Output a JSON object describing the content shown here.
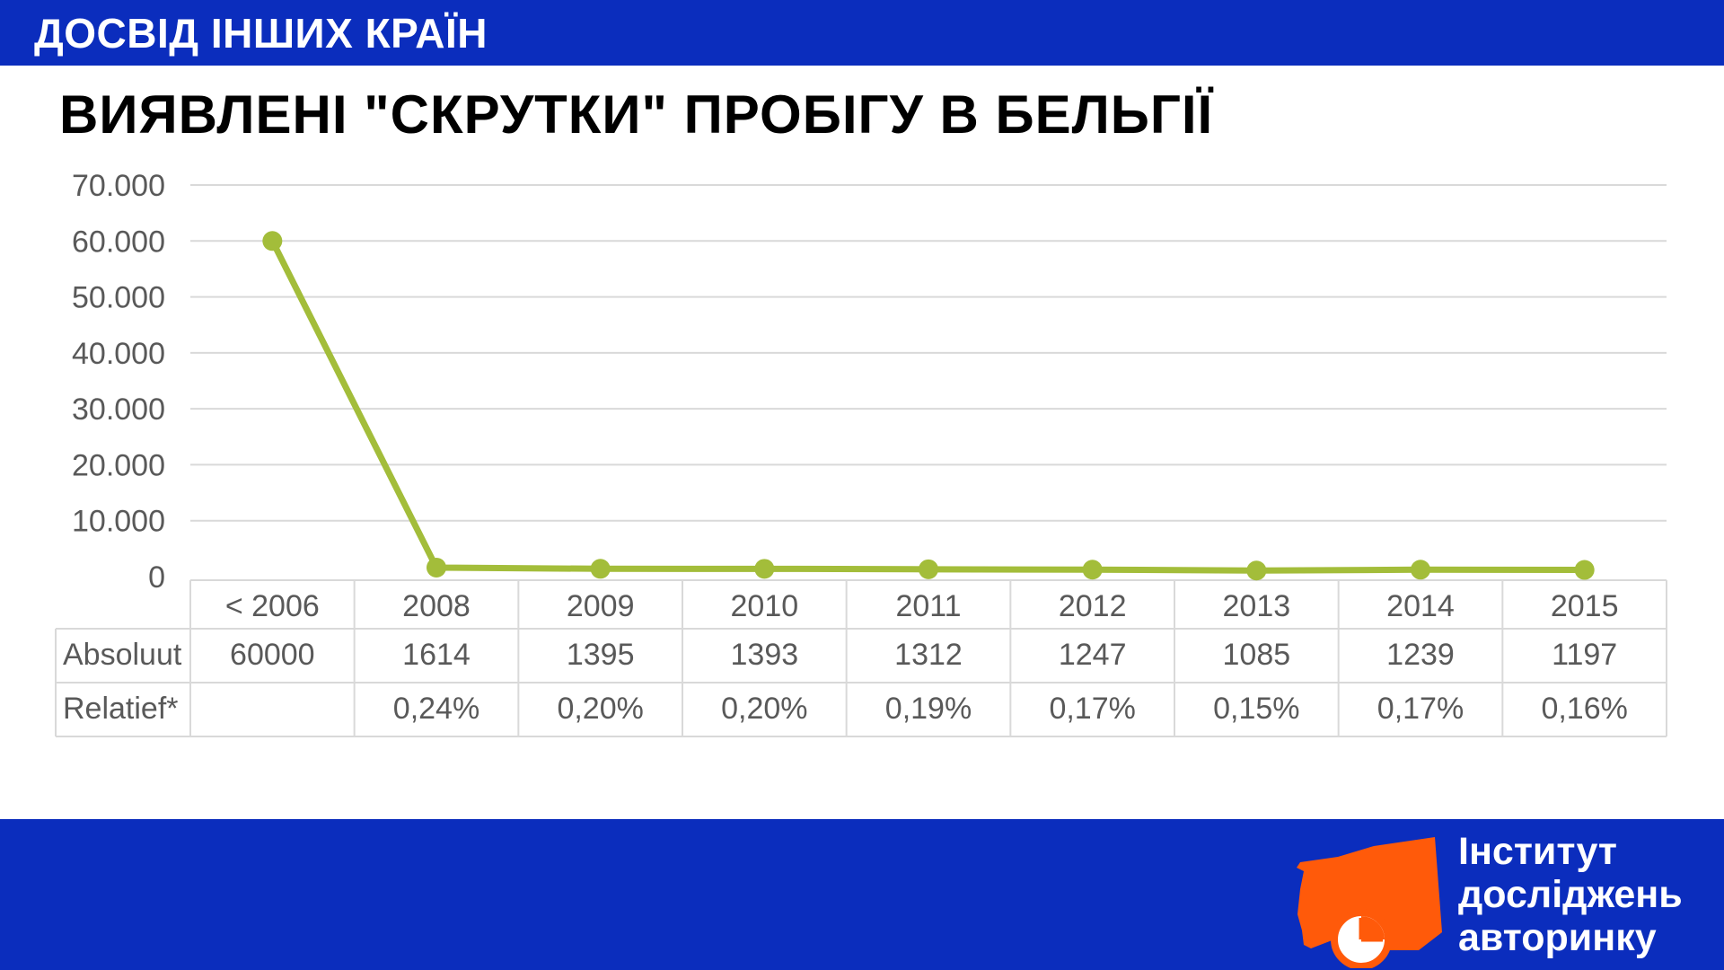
{
  "header": {
    "section_title": "ДОСВІД ІНШИХ КРАЇН"
  },
  "slide": {
    "title": "ВИЯВЛЕНІ \"СКРУТКИ\" ПРОБІГУ В БЕЛЬГІЇ"
  },
  "chart_data": {
    "type": "line",
    "title": "",
    "xlabel": "",
    "ylabel": "",
    "categories": [
      "< 2006",
      "2008",
      "2009",
      "2010",
      "2011",
      "2012",
      "2013",
      "2014",
      "2015"
    ],
    "series": [
      {
        "values": [
          60000,
          1614,
          1395,
          1393,
          1312,
          1247,
          1085,
          1239,
          1197
        ]
      }
    ],
    "ylim": [
      0,
      70000
    ],
    "yticks": [
      "0",
      "10.000",
      "20.000",
      "30.000",
      "40.000",
      "50.000",
      "60.000",
      "70.000"
    ],
    "grid": true,
    "line_color": "#a3bd3a",
    "table": {
      "rows": [
        {
          "label": "Absoluut",
          "cells": [
            "60000",
            "1614",
            "1395",
            "1393",
            "1312",
            "1247",
            "1085",
            "1239",
            "1197"
          ]
        },
        {
          "label": "Relatief*",
          "cells": [
            "",
            "0,24%",
            "0,20%",
            "0,20%",
            "0,19%",
            "0,17%",
            "0,15%",
            "0,17%",
            "0,16%"
          ]
        }
      ]
    }
  },
  "logo": {
    "line1": "Інститут",
    "line2": "досліджень",
    "line3": "авторинку",
    "accent_color": "#ff5a0a"
  }
}
